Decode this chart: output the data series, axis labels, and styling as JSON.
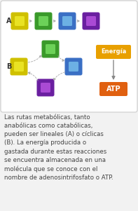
{
  "background_color": "#f2f2f2",
  "diagram_bg": "#e8e8e8",
  "text_content": "Las rutas metabólicas, tanto\nanabólicas como catabólicas,\npueden ser lineales (A) o cíclicas\n(B). La energía producida o\ngastada durante estas reacciones\nse encuentra almacenada en una\nmolécula que se conoce con el\nnombre de adenosintrifosfato o ATP.",
  "label_A": "A",
  "label_B": "B",
  "row_A_colors": [
    "#cfc000",
    "#3a9a2a",
    "#3a6fc4",
    "#6a1fa0"
  ],
  "row_B_colors": [
    "#cfc000",
    "#3a9a2a",
    "#3a6fc4",
    "#6a1fa0"
  ],
  "energia_bg": "#e8a000",
  "atp_bg": "#e06010",
  "energia_label": "Energía",
  "atp_label": "ATP",
  "text_fontsize": 6.2,
  "arrow_color": "#aaaaaa",
  "border_color": "#cccccc"
}
